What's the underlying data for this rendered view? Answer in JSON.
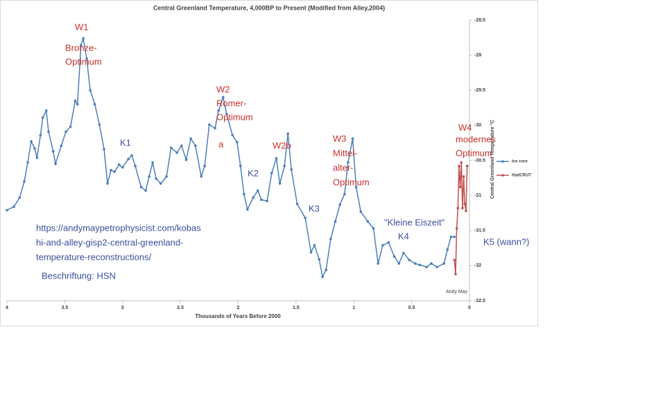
{
  "chart_data": {
    "type": "line",
    "title": "Central Greenland Temperature, 4,000BP to Present (Modified from Alley,2004)",
    "x_label": "Thousands of Years Before 2000",
    "y_label": "Central Greenland Temperature °C",
    "xlim": [
      4,
      0
    ],
    "xticks": [
      4,
      3.5,
      3,
      2.5,
      2,
      1.5,
      1,
      0.5,
      0
    ],
    "ylim": [
      -32.5,
      -28.5
    ],
    "yticks": [
      -28.5,
      -29,
      -29.5,
      -30,
      -30.5,
      -31,
      -31.5,
      -32,
      -32.5
    ],
    "grid": false,
    "legend": "right",
    "series": [
      {
        "name": "Ice core",
        "color": "#4a7ebb",
        "x": [
          4.0,
          3.94,
          3.89,
          3.85,
          3.82,
          3.79,
          3.76,
          3.74,
          3.71,
          3.69,
          3.66,
          3.64,
          3.6,
          3.58,
          3.53,
          3.49,
          3.45,
          3.41,
          3.39,
          3.36,
          3.34,
          3.31,
          3.28,
          3.24,
          3.2,
          3.16,
          3.13,
          3.1,
          3.07,
          3.03,
          3.0,
          2.95,
          2.92,
          2.89,
          2.84,
          2.8,
          2.77,
          2.74,
          2.71,
          2.67,
          2.62,
          2.58,
          2.53,
          2.49,
          2.45,
          2.41,
          2.37,
          2.32,
          2.29,
          2.25,
          2.2,
          2.17,
          2.13,
          2.1,
          2.05,
          2.01,
          1.98,
          1.95,
          1.92,
          1.87,
          1.83,
          1.8,
          1.75,
          1.71,
          1.67,
          1.64,
          1.6,
          1.57,
          1.54,
          1.49,
          1.42,
          1.37,
          1.34,
          1.3,
          1.27,
          1.24,
          1.2,
          1.16,
          1.12,
          1.08,
          1.05,
          1.01,
          0.98,
          0.94,
          0.88,
          0.83,
          0.79,
          0.75,
          0.7,
          0.65,
          0.61,
          0.57,
          0.52,
          0.47,
          0.43,
          0.37,
          0.33,
          0.28,
          0.22,
          0.19,
          0.16,
          0.13
        ],
        "values": [
          -31.21,
          -31.16,
          -31.03,
          -30.8,
          -30.53,
          -30.23,
          -30.33,
          -30.46,
          -30.14,
          -29.89,
          -29.79,
          -30.09,
          -30.37,
          -30.55,
          -30.29,
          -30.09,
          -30.02,
          -29.65,
          -29.7,
          -28.86,
          -28.76,
          -29.05,
          -29.5,
          -29.7,
          -29.99,
          -30.34,
          -30.83,
          -30.64,
          -30.66,
          -30.56,
          -30.6,
          -30.48,
          -30.43,
          -30.58,
          -30.88,
          -30.93,
          -30.73,
          -30.53,
          -30.76,
          -30.83,
          -30.73,
          -30.32,
          -30.39,
          -30.29,
          -30.49,
          -30.19,
          -30.29,
          -30.73,
          -30.58,
          -29.99,
          -30.04,
          -29.79,
          -29.6,
          -29.84,
          -30.14,
          -30.24,
          -30.58,
          -30.98,
          -31.2,
          -31.03,
          -30.93,
          -31.06,
          -31.08,
          -30.68,
          -30.47,
          -30.83,
          -30.58,
          -30.12,
          -30.63,
          -31.12,
          -31.32,
          -31.81,
          -31.71,
          -31.91,
          -32.16,
          -32.06,
          -31.62,
          -31.37,
          -31.13,
          -30.98,
          -30.53,
          -30.19,
          -30.88,
          -31.23,
          -31.37,
          -31.47,
          -31.97,
          -31.71,
          -31.67,
          -31.87,
          -31.97,
          -31.82,
          -31.92,
          -31.97,
          -31.99,
          -32.02,
          -31.97,
          -32.02,
          -31.97,
          -31.77,
          -31.59,
          -31.59
        ]
      },
      {
        "name": "HadCRUT",
        "color": "#c0504d",
        "x": [
          0.13,
          0.12,
          0.11,
          0.1,
          0.09,
          0.08,
          0.07,
          0.06,
          0.05,
          0.04,
          0.03,
          0.02
        ],
        "values": [
          -31.92,
          -32.12,
          -31.47,
          -31.18,
          -30.58,
          -30.88,
          -30.53,
          -31.18,
          -30.73,
          -31.12,
          -31.22,
          -30.58
        ]
      }
    ],
    "annotations": [
      {
        "lines": [
          "W1"
        ],
        "color": "#c8302c"
      },
      {
        "lines": [
          "Bronze-",
          "Optimum"
        ],
        "color": "#c8302c"
      },
      {
        "lines": [
          "W2"
        ],
        "color": "#c8302c"
      },
      {
        "lines": [
          "Romer-",
          "Optimum"
        ],
        "color": "#c8302c"
      },
      {
        "lines": [
          "a"
        ],
        "color": "#c8302c"
      },
      {
        "lines": [
          "W2b"
        ],
        "color": "#c8302c"
      },
      {
        "lines": [
          "W3"
        ],
        "color": "#c8302c"
      },
      {
        "lines": [
          "Mittel-",
          "alter-",
          "Optimum"
        ],
        "color": "#c8302c"
      },
      {
        "lines": [
          "W4"
        ],
        "color": "#c8302c"
      },
      {
        "lines": [
          "modernes",
          "Optimum"
        ],
        "color": "#c8302c"
      },
      {
        "lines": [
          "K1"
        ],
        "color": "#3b4fa0"
      },
      {
        "lines": [
          "K2"
        ],
        "color": "#3b4fa0"
      },
      {
        "lines": [
          "K3"
        ],
        "color": "#3b4fa0"
      },
      {
        "lines": [
          "\"Kleine Eiszeit\""
        ],
        "color": "#3b4fa0"
      },
      {
        "lines": [
          "K4"
        ],
        "color": "#3b4fa0"
      },
      {
        "lines": [
          "K5 (wann?)"
        ],
        "color": "#3b4fa0"
      },
      {
        "lines": [
          "https://andymaypetrophysicist.com/kobas",
          "hi-and-alley-gisp2-central-greenland-",
          "temperature-reconstructions/"
        ],
        "color": "#3b4fa0"
      },
      {
        "lines": [
          "Beschriftung: HSN"
        ],
        "color": "#3b4fa0"
      },
      {
        "lines": [
          "Andy May"
        ],
        "color": "#404040"
      }
    ]
  }
}
